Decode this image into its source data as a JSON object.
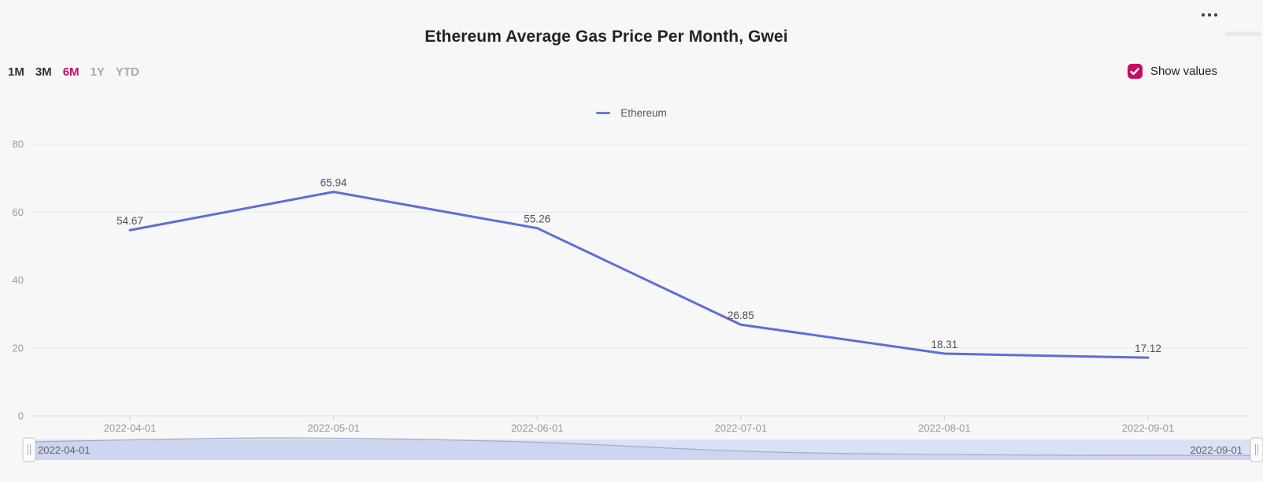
{
  "header": {
    "title": "Ethereum Average Gas Price Per Month, Gwei",
    "menu_icon": "ellipsis-icon"
  },
  "controls": {
    "ranges": [
      {
        "label": "1M",
        "state": "default"
      },
      {
        "label": "3M",
        "state": "default"
      },
      {
        "label": "6M",
        "state": "active"
      },
      {
        "label": "1Y",
        "state": "muted"
      },
      {
        "label": "YTD",
        "state": "muted"
      }
    ],
    "show_values": {
      "label": "Show values",
      "checked": true
    }
  },
  "legend": {
    "position": "top-center",
    "items": [
      {
        "label": "Ethereum",
        "color": "#5e6ed6",
        "marker": "line-dash-icon"
      }
    ]
  },
  "chart_data": {
    "type": "line",
    "title": "Ethereum Average Gas Price Per Month, Gwei",
    "x": [
      "2022-04-01",
      "2022-05-01",
      "2022-06-01",
      "2022-07-01",
      "2022-08-01",
      "2022-09-01"
    ],
    "series": [
      {
        "name": "Ethereum",
        "color": "#5e6ed6",
        "values": [
          54.67,
          65.94,
          55.26,
          26.85,
          18.31,
          17.12
        ]
      }
    ],
    "xlabel": "",
    "ylabel": "",
    "ylim": [
      0,
      80
    ],
    "yticks": [
      0,
      20,
      40,
      60,
      80
    ],
    "grid": true,
    "value_labels": true,
    "legend_position": "top-center"
  },
  "navigator": {
    "start_label": "2022-04-01",
    "end_label": "2022-09-01"
  },
  "colors": {
    "background": "#f7f7f8",
    "accent_pink": "#c60d65",
    "line_blue": "#5e6ed6",
    "navigator_band": "#dbe0f5",
    "grid": "#e7e7e9",
    "axis_text": "#9a9aa0"
  }
}
